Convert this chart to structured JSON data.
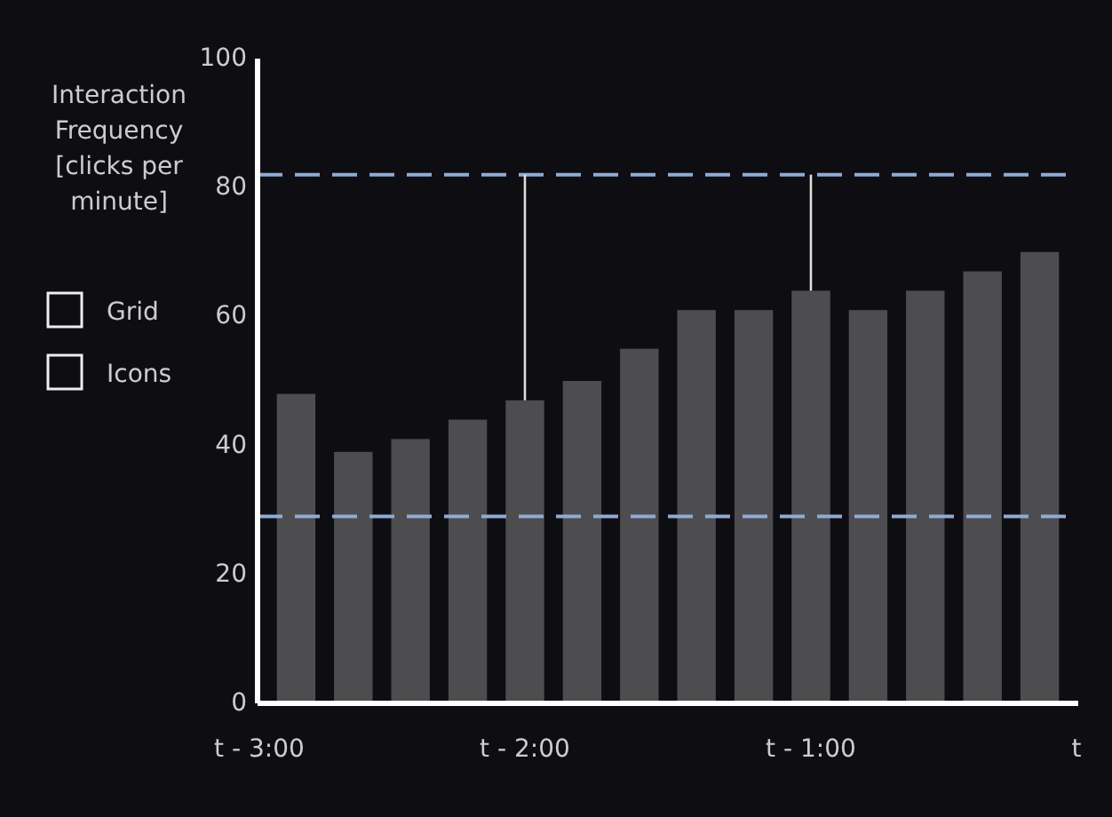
{
  "chart_data": {
    "type": "bar",
    "ylabel": "Interaction Frequency [clicks per minute]",
    "categories": [
      null,
      null,
      null,
      null,
      "t - 2:00",
      null,
      null,
      null,
      null,
      "t - 1:00",
      null,
      null,
      null,
      null
    ],
    "values": [
      48,
      39,
      41,
      44,
      47,
      50,
      55,
      61,
      61,
      64,
      61,
      64,
      67,
      70
    ],
    "color": "#4d4d4f",
    "ylim": [
      0,
      100
    ],
    "yticks": [
      0,
      20,
      40,
      60,
      80,
      100
    ],
    "ref_lines": [
      {
        "axis": "y",
        "value": 82,
        "color": "#8faad8",
        "line_style": "dashed"
      },
      {
        "axis": "y",
        "value": 29,
        "color": "#8faad8",
        "line_style": "dashed"
      }
    ],
    "annotations": [
      "t - 3:00",
      "t",
      "Grid",
      "Icons"
    ],
    "grid": false
  }
}
